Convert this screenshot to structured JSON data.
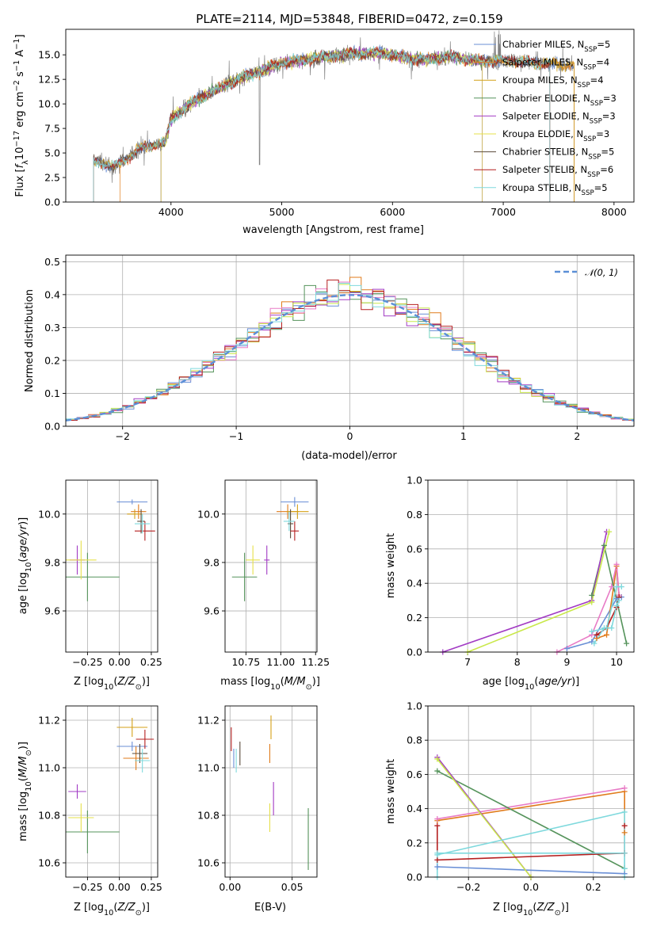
{
  "figure": {
    "title": "PLATE=2114, MJD=53848, FIBERID=0472, z=0.159"
  },
  "colors": {
    "series": [
      "#6a8fd6",
      "#e07b1b",
      "#d4a017",
      "#55935b",
      "#a23bc4",
      "#e6e04a",
      "#5a4a3a",
      "#b51f1f",
      "#7fd9dd"
    ],
    "spectrum": "#808080",
    "gaussian": "#5b8fd6",
    "hist": [
      "#6a8fd6",
      "#e07b1b",
      "#55935b",
      "#a23bc4",
      "#e87bc6",
      "#c9e84a",
      "#b51f1f",
      "#7fd9dd"
    ],
    "weights": [
      "#6a8fd6",
      "#e07b1b",
      "#e87bc6",
      "#55935b",
      "#a23bc4",
      "#c9e84a",
      "#b51f1f",
      "#7fd9dd"
    ]
  },
  "chart_data": [
    {
      "id": "spectrum",
      "type": "line",
      "xlabel": "wavelength [Angstrom, rest frame]",
      "ylabel": "Flux [f_λ 10^-17 erg cm^-2 s^-1 A^-1]",
      "xlim": [
        3050,
        8180
      ],
      "ylim": [
        0,
        17.6
      ],
      "xticks": [
        4000,
        5000,
        6000,
        7000,
        8000
      ],
      "yticks": [
        0.0,
        2.5,
        5.0,
        7.5,
        10.0,
        12.5,
        15.0
      ],
      "legend": [
        "Chabrier MILES, N_SSP=5",
        "Salpeter MILES, N_SSP=4",
        "Kroupa MILES, N_SSP=4",
        "Chabrier ELODIE, N_SSP=3",
        "Salpeter ELODIE, N_SSP=3",
        "Kroupa ELODIE, N_SSP=3",
        "Chabrier STELIB, N_SSP=5",
        "Salpeter STELIB, N_SSP=6",
        "Kroupa STELIB, N_SSP=5"
      ],
      "continuum": [
        [
          3300,
          4.2
        ],
        [
          3500,
          3.6
        ],
        [
          3700,
          5.3
        ],
        [
          3950,
          6.2
        ],
        [
          4000,
          8.5
        ],
        [
          4200,
          10.2
        ],
        [
          4400,
          11.4
        ],
        [
          4600,
          12.5
        ],
        [
          4800,
          13.3
        ],
        [
          5000,
          14.2
        ],
        [
          5300,
          14.6
        ],
        [
          5600,
          15.1
        ],
        [
          5900,
          15.2
        ],
        [
          6100,
          14.7
        ],
        [
          6300,
          14.5
        ],
        [
          6500,
          14.8
        ],
        [
          6800,
          14.4
        ],
        [
          7100,
          14.4
        ],
        [
          7400,
          14.1
        ],
        [
          7600,
          14.0
        ]
      ],
      "spectrum_range": [
        3300,
        7640
      ],
      "model_ranges": [
        [
          3300,
          7640
        ],
        [
          3540,
          7640
        ],
        [
          3300,
          7640
        ],
        [
          3910,
          6810
        ],
        [
          3910,
          6810
        ],
        [
          3910,
          6810
        ],
        [
          3300,
          7420
        ],
        [
          3300,
          7420
        ],
        [
          3300,
          7420
        ]
      ]
    },
    {
      "id": "residuals",
      "type": "bar",
      "xlabel": "(data-model)/error",
      "ylabel": "Normed distribution",
      "xlim": [
        -2.5,
        2.5
      ],
      "ylim": [
        0,
        0.52
      ],
      "xticks": [
        -2,
        -1,
        0,
        1,
        2
      ],
      "yticks": [
        0.0,
        0.1,
        0.2,
        0.3,
        0.4,
        0.5
      ],
      "bin_width": 0.1,
      "legend": [
        "N(0, 1)"
      ],
      "gaussian": {
        "mean": 0,
        "sigma": 1
      }
    },
    {
      "id": "age-vs-Z",
      "type": "scatter",
      "xlabel": "Z [log10(Z/Z⊙)]",
      "ylabel": "age  [log10(age/yr)]",
      "xlim": [
        -0.42,
        0.3
      ],
      "ylim": [
        9.43,
        10.14
      ],
      "xticks": [
        -0.25,
        0.0,
        0.25
      ],
      "yticks": [
        9.6,
        9.8,
        10.0
      ],
      "points": [
        {
          "x": 0.1,
          "y": 10.05,
          "xerr": 0.12,
          "yerr": 0.01
        },
        {
          "x": 0.15,
          "y": 10.01,
          "xerr": 0.06,
          "yerr": 0.03
        },
        {
          "x": 0.12,
          "y": 10.0,
          "xerr": 0.06,
          "yerr": 0.02
        },
        {
          "x": -0.25,
          "y": 9.74,
          "xerr": 0.25,
          "yerr": 0.1
        },
        {
          "x": -0.33,
          "y": 9.81,
          "xerr": 0.06,
          "yerr": 0.06
        },
        {
          "x": -0.3,
          "y": 9.81,
          "xerr": 0.12,
          "yerr": 0.08
        },
        {
          "x": 0.17,
          "y": 9.97,
          "xerr": 0.03,
          "yerr": 0.05
        },
        {
          "x": 0.2,
          "y": 9.93,
          "xerr": 0.08,
          "yerr": 0.04
        },
        {
          "x": 0.18,
          "y": 9.96,
          "xerr": 0.06,
          "yerr": 0.04
        }
      ]
    },
    {
      "id": "age-vs-mass",
      "type": "scatter",
      "xlabel": "mass [log10(M/M⊙)]",
      "ylabel": "",
      "xlim": [
        10.6,
        11.26
      ],
      "ylim": [
        9.43,
        10.14
      ],
      "xticks": [
        10.75,
        11.0,
        11.25
      ],
      "yticks": [
        9.6,
        9.8,
        10.0
      ],
      "points": [
        {
          "x": 11.1,
          "y": 10.05,
          "xerr": 0.1,
          "yerr": 0.02
        },
        {
          "x": 11.05,
          "y": 10.01,
          "xerr": 0.08,
          "yerr": 0.03
        },
        {
          "x": 11.12,
          "y": 10.01,
          "xerr": 0.08,
          "yerr": 0.03
        },
        {
          "x": 10.74,
          "y": 9.74,
          "xerr": 0.09,
          "yerr": 0.1
        },
        {
          "x": 10.9,
          "y": 9.81,
          "xerr": 0.02,
          "yerr": 0.06
        },
        {
          "x": 10.8,
          "y": 9.81,
          "xerr": 0.05,
          "yerr": 0.06
        },
        {
          "x": 11.07,
          "y": 9.96,
          "xerr": 0.02,
          "yerr": 0.06
        },
        {
          "x": 11.1,
          "y": 9.93,
          "xerr": 0.03,
          "yerr": 0.04
        },
        {
          "x": 11.06,
          "y": 9.97,
          "xerr": 0.04,
          "yerr": 0.04
        }
      ]
    },
    {
      "id": "weight-vs-age",
      "type": "line",
      "xlabel": "age  [log10(age/yr)]",
      "ylabel": "mass weight",
      "xlim": [
        6.2,
        10.35
      ],
      "ylim": [
        0,
        1
      ],
      "xticks": [
        7,
        8,
        9,
        10
      ],
      "yticks": [
        0.0,
        0.2,
        0.4,
        0.6,
        0.8,
        1.0
      ],
      "series": [
        {
          "points": [
            [
              9.0,
              0.02
            ],
            [
              9.5,
              0.06
            ],
            [
              10.0,
              0.31
            ],
            [
              10.1,
              0.32
            ]
          ]
        },
        {
          "points": [
            [
              9.6,
              0.08
            ],
            [
              9.8,
              0.1
            ],
            [
              10.0,
              0.5
            ],
            [
              10.05,
              0.33
            ]
          ]
        },
        {
          "points": [
            [
              8.8,
              0.0
            ],
            [
              9.5,
              0.1
            ],
            [
              9.9,
              0.38
            ],
            [
              10.0,
              0.51
            ],
            [
              10.05,
              0.33
            ]
          ]
        },
        {
          "points": [
            [
              9.5,
              0.33
            ],
            [
              9.75,
              0.62
            ],
            [
              10.2,
              0.05
            ]
          ]
        },
        {
          "points": [
            [
              6.5,
              0.0
            ],
            [
              9.5,
              0.3
            ],
            [
              9.8,
              0.7
            ]
          ]
        },
        {
          "points": [
            [
              7.0,
              0.0
            ],
            [
              9.5,
              0.29
            ],
            [
              9.85,
              0.7
            ]
          ]
        },
        {
          "points": [
            [
              9.6,
              0.1
            ],
            [
              9.8,
              0.14
            ],
            [
              10.0,
              0.26
            ],
            [
              10.05,
              0.32
            ]
          ]
        },
        {
          "points": [
            [
              9.55,
              0.05
            ],
            [
              9.75,
              0.14
            ],
            [
              9.9,
              0.14
            ],
            [
              10.0,
              0.27
            ],
            [
              10.05,
              0.3
            ]
          ]
        },
        {
          "points": [
            [
              9.5,
              0.12
            ],
            [
              9.8,
              0.14
            ],
            [
              10.0,
              0.38
            ],
            [
              10.1,
              0.38
            ]
          ]
        }
      ]
    },
    {
      "id": "mass-vs-Z",
      "type": "scatter",
      "xlabel": "Z [log10(Z/Z⊙)]",
      "ylabel": "mass [log10(M/M⊙)]",
      "xlim": [
        -0.42,
        0.3
      ],
      "ylim": [
        10.54,
        11.26
      ],
      "xticks": [
        -0.25,
        0.0,
        0.25
      ],
      "yticks": [
        10.6,
        10.8,
        11.0,
        11.2
      ],
      "points": [
        {
          "x": 0.1,
          "y": 11.09,
          "xerr": 0.12,
          "yerr": 0.02
        },
        {
          "x": 0.13,
          "y": 11.04,
          "xerr": 0.1,
          "yerr": 0.05
        },
        {
          "x": 0.1,
          "y": 11.17,
          "xerr": 0.12,
          "yerr": 0.04
        },
        {
          "x": -0.25,
          "y": 10.73,
          "xerr": 0.25,
          "yerr": 0.09
        },
        {
          "x": -0.33,
          "y": 10.9,
          "xerr": 0.07,
          "yerr": 0.03
        },
        {
          "x": -0.3,
          "y": 10.79,
          "xerr": 0.1,
          "yerr": 0.06
        },
        {
          "x": 0.16,
          "y": 11.06,
          "xerr": 0.06,
          "yerr": 0.04
        },
        {
          "x": 0.2,
          "y": 11.12,
          "xerr": 0.07,
          "yerr": 0.04
        },
        {
          "x": 0.18,
          "y": 11.03,
          "xerr": 0.06,
          "yerr": 0.05
        }
      ]
    },
    {
      "id": "mass-vs-ebv",
      "type": "scatter",
      "xlabel": "E(B-V)",
      "ylabel": "",
      "xlim": [
        -0.004,
        0.07
      ],
      "ylim": [
        10.54,
        11.26
      ],
      "xticks": [
        0.0,
        0.05
      ],
      "xtick_labels": [
        "0.00",
        "0.05"
      ],
      "yticks": [
        10.6,
        10.8,
        11.0,
        11.2
      ],
      "points": [
        {
          "x": 0.003,
          "y": 11.04,
          "xerr": 0.0,
          "yerr": 0.04
        },
        {
          "x": 0.032,
          "y": 11.06,
          "xerr": 0.0,
          "yerr": 0.04
        },
        {
          "x": 0.033,
          "y": 11.17,
          "xerr": 0.0,
          "yerr": 0.05
        },
        {
          "x": 0.063,
          "y": 10.7,
          "xerr": 0.0,
          "yerr": 0.13
        },
        {
          "x": 0.035,
          "y": 10.87,
          "xerr": 0.0,
          "yerr": 0.07
        },
        {
          "x": 0.032,
          "y": 10.79,
          "xerr": 0.0,
          "yerr": 0.06
        },
        {
          "x": 0.008,
          "y": 11.06,
          "xerr": 0.0,
          "yerr": 0.05
        },
        {
          "x": 0.001,
          "y": 11.12,
          "xerr": 0.0,
          "yerr": 0.05
        },
        {
          "x": 0.005,
          "y": 11.03,
          "xerr": 0.0,
          "yerr": 0.05
        }
      ]
    },
    {
      "id": "weight-vs-Z",
      "type": "line",
      "xlabel": "Z [log10(Z/Z⊙)]",
      "ylabel": "mass weight",
      "xlim": [
        -0.33,
        0.33
      ],
      "ylim": [
        0,
        1
      ],
      "xticks": [
        -0.2,
        0.0,
        0.2
      ],
      "yticks": [
        0.0,
        0.2,
        0.4,
        0.6,
        0.8,
        1.0
      ],
      "series": [
        {
          "points": [
            [
              -0.3,
              0.06
            ],
            [
              0.3,
              0.02
            ]
          ]
        },
        {
          "points": [
            [
              -0.3,
              0.33
            ],
            [
              0.3,
              0.5
            ],
            [
              0.3,
              0.26
            ]
          ]
        },
        {
          "points": [
            [
              -0.3,
              0.34
            ],
            [
              0.3,
              0.52
            ]
          ]
        },
        {
          "points": [
            [
              -0.3,
              0.62
            ],
            [
              0.3,
              0.05
            ]
          ]
        },
        {
          "points": [
            [
              -0.3,
              0.7
            ],
            [
              0.0,
              0.0
            ]
          ]
        },
        {
          "points": [
            [
              -0.3,
              0.69
            ],
            [
              0.0,
              0.0
            ]
          ]
        },
        {
          "points": [
            [
              -0.3,
              0.3
            ],
            [
              -0.3,
              0.1
            ],
            [
              0.3,
              0.14
            ],
            [
              0.3,
              0.3
            ]
          ]
        },
        {
          "points": [
            [
              -0.3,
              0.0
            ],
            [
              -0.3,
              0.14
            ],
            [
              0.3,
              0.14
            ],
            [
              0.3,
              0.0
            ]
          ]
        },
        {
          "points": [
            [
              -0.3,
              0.13
            ],
            [
              0.3,
              0.38
            ],
            [
              0.3,
              0.05
            ]
          ]
        }
      ]
    }
  ]
}
